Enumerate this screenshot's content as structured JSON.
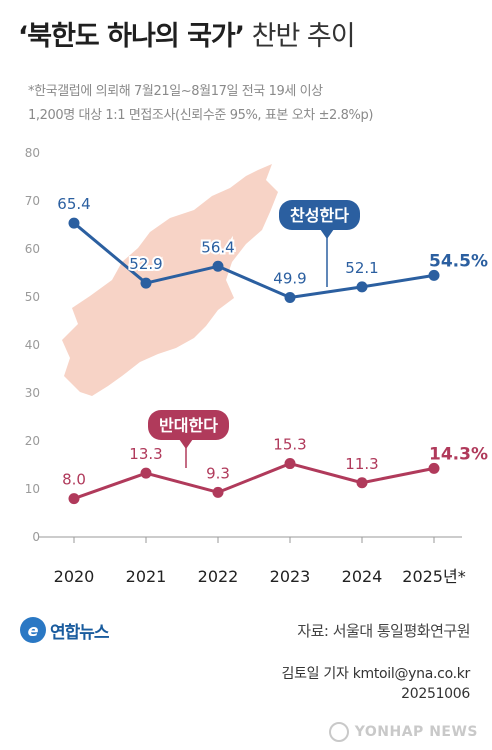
{
  "header": {
    "title_strong": "‘북한도 하나의 국가’",
    "title_light": " 찬반 추이",
    "note_line1": "*한국갤럽에 의뢰해 7월21일~8월17일 전국 19세 이상",
    "note_line2": "1,200명 대상 1:1 면접조사(신뢰수준 95%, 표본 오차 ±2.8%p)"
  },
  "chart_data": {
    "type": "line",
    "categories": [
      "2020",
      "2021",
      "2022",
      "2023",
      "2024",
      "2025년*"
    ],
    "ylim": [
      0,
      80
    ],
    "yticks": [
      0,
      10,
      20,
      30,
      40,
      50,
      60,
      70,
      80
    ],
    "grid": false,
    "series": [
      {
        "name": "찬성한다",
        "values": [
          65.4,
          52.9,
          56.4,
          49.9,
          52.1,
          54.5
        ],
        "labels": [
          "65.4",
          "52.9",
          "56.4",
          "49.9",
          "52.1",
          "54.5%"
        ],
        "color": "#2b5fa0"
      },
      {
        "name": "반대한다",
        "values": [
          8.0,
          13.3,
          9.3,
          15.3,
          11.3,
          14.3
        ],
        "labels": [
          "8.0",
          "13.3",
          "9.3",
          "15.3",
          "11.3",
          "14.3%"
        ],
        "color": "#b03a5b"
      }
    ],
    "background_shape": "north-korea-map"
  },
  "footer": {
    "logo_text": "연합뉴스",
    "source": "자료: 서울대 통일평화연구원",
    "reporter": "김토일 기자 kmtoil@yna.co.kr",
    "date": "20251006",
    "watermark": "YONHAP NEWS"
  }
}
